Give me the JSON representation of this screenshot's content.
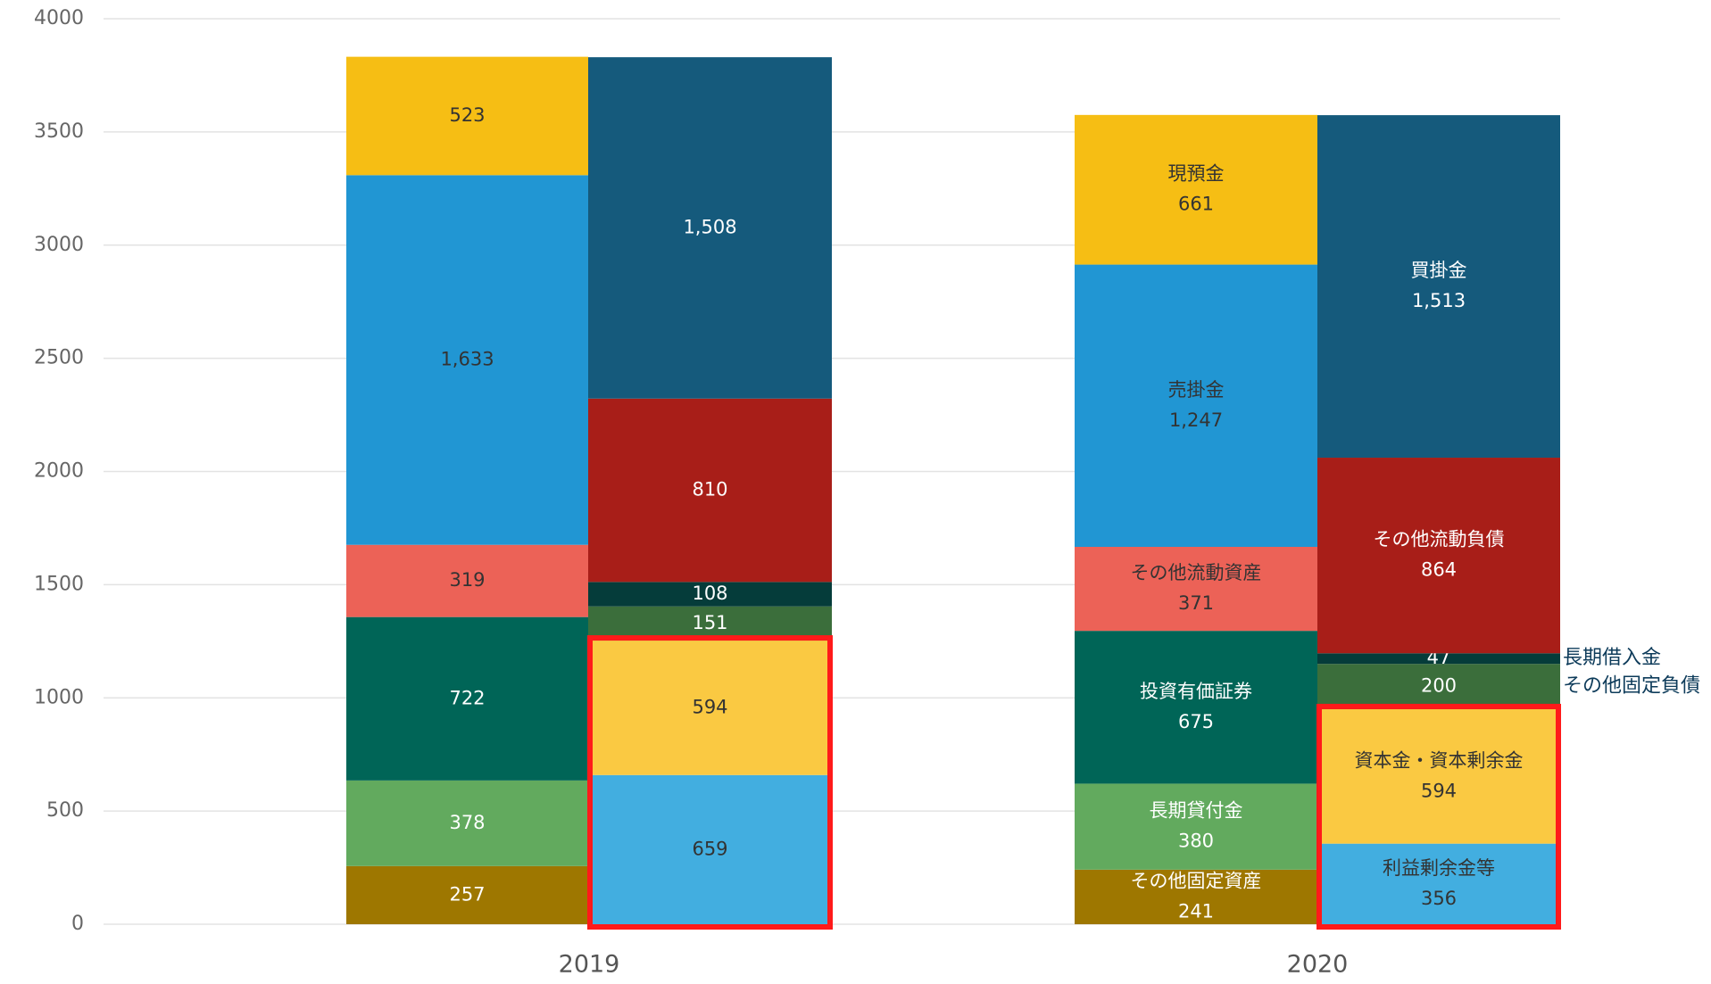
{
  "chart_data": {
    "type": "stacked_bar",
    "categories": [
      "2019",
      "2020"
    ],
    "ylim": [
      0,
      4000
    ],
    "yticks": [
      0,
      500,
      1000,
      1500,
      2000,
      2500,
      3000,
      3500,
      4000
    ],
    "grid": true,
    "stacks": [
      [
        {
          "name": "その他固定資産",
          "color": "#9e7700",
          "label_color": "#ffffff",
          "values": [
            257,
            241
          ],
          "value_labels": [
            "257",
            "241"
          ]
        },
        {
          "name": "長期貸付金",
          "color": "#62aa5e",
          "label_color": "#ffffff",
          "values": [
            378,
            380
          ],
          "value_labels": [
            "378",
            "380"
          ]
        },
        {
          "name": "投資有価証券",
          "color": "#006557",
          "label_color": "#ffffff",
          "values": [
            722,
            675
          ],
          "value_labels": [
            "722",
            "675"
          ]
        },
        {
          "name": "その他流動資産",
          "color": "#ec6257",
          "label_color": "#333333",
          "values": [
            319,
            371
          ],
          "value_labels": [
            "319",
            "371"
          ]
        },
        {
          "name": "売掛金",
          "color": "#2196d3",
          "label_color": "#333333",
          "values": [
            1633,
            1247
          ],
          "value_labels": [
            "1,633",
            "1,247"
          ]
        },
        {
          "name": "現預金",
          "color": "#f6be14",
          "label_color": "#333333",
          "values": [
            523,
            661
          ],
          "value_labels": [
            "523",
            "661"
          ]
        }
      ],
      [
        {
          "name": "利益剰余金等",
          "color": "#42aee0",
          "label_color": "#333333",
          "highlight": true,
          "values": [
            659,
            356
          ],
          "value_labels": [
            "659",
            "356"
          ]
        },
        {
          "name": "資本金・資本剰余金",
          "color": "#fac942",
          "label_color": "#333333",
          "highlight": true,
          "values": [
            594,
            594
          ],
          "value_labels": [
            "594",
            "594"
          ]
        },
        {
          "name": "その他固定負債",
          "color": "#3b6e3b",
          "label_color": "#ffffff",
          "values": [
            151,
            200
          ],
          "value_labels": [
            "151",
            "200"
          ]
        },
        {
          "name": "長期借入金",
          "color": "#053c3a",
          "label_color": "#ffffff",
          "values": [
            108,
            47
          ],
          "value_labels": [
            "108",
            "47"
          ]
        },
        {
          "name": "その他流動負債",
          "color": "#a81e18",
          "label_color": "#ffffff",
          "values": [
            810,
            864
          ],
          "value_labels": [
            "810",
            "864"
          ]
        },
        {
          "name": "買掛金",
          "color": "#155a7c",
          "label_color": "#ffffff",
          "values": [
            1508,
            1513
          ],
          "value_labels": [
            "1,508",
            "1,513"
          ]
        }
      ]
    ]
  }
}
